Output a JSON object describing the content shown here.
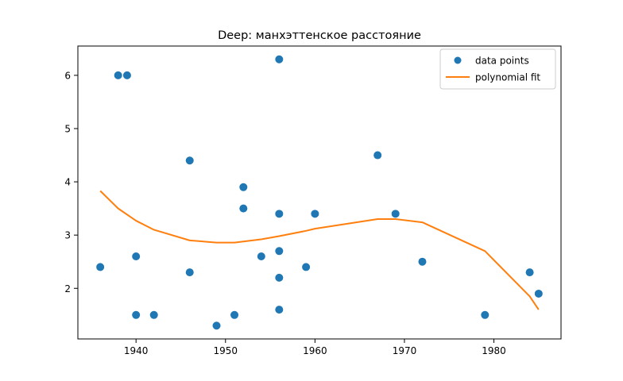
{
  "chart_data": {
    "type": "scatter",
    "title": "Deep: манхэттенское расстояние",
    "xlabel": "",
    "ylabel": "",
    "xlim": [
      1933.5,
      1987.5
    ],
    "ylim": [
      1.05,
      6.55
    ],
    "xticks": [
      1940,
      1950,
      1960,
      1970,
      1980
    ],
    "yticks": [
      2,
      3,
      4,
      5,
      6
    ],
    "grid": false,
    "legend_position": "top-right",
    "colors": {
      "points": "#1f77b4",
      "fit": "#ff7f0e",
      "axes": "#000000"
    },
    "series": [
      {
        "name": "data points",
        "kind": "scatter",
        "points": [
          [
            1936,
            2.4
          ],
          [
            1938,
            6.0
          ],
          [
            1939,
            6.0
          ],
          [
            1940,
            2.6
          ],
          [
            1940,
            1.5
          ],
          [
            1942,
            1.5
          ],
          [
            1946,
            4.4
          ],
          [
            1946,
            2.3
          ],
          [
            1949,
            1.3
          ],
          [
            1951,
            1.5
          ],
          [
            1952,
            3.9
          ],
          [
            1952,
            3.5
          ],
          [
            1954,
            2.6
          ],
          [
            1956,
            6.3
          ],
          [
            1956,
            3.4
          ],
          [
            1956,
            2.7
          ],
          [
            1956,
            2.2
          ],
          [
            1956,
            1.6
          ],
          [
            1959,
            2.4
          ],
          [
            1960,
            3.4
          ],
          [
            1967,
            4.5
          ],
          [
            1969,
            3.4
          ],
          [
            1972,
            2.5
          ],
          [
            1979,
            1.5
          ],
          [
            1984,
            2.3
          ],
          [
            1985,
            1.9
          ]
        ]
      },
      {
        "name": "polynomial fit",
        "kind": "line",
        "points": [
          [
            1936,
            3.83
          ],
          [
            1938,
            3.5
          ],
          [
            1940,
            3.27
          ],
          [
            1942,
            3.1
          ],
          [
            1946,
            2.9
          ],
          [
            1949,
            2.86
          ],
          [
            1951,
            2.86
          ],
          [
            1952,
            2.88
          ],
          [
            1954,
            2.92
          ],
          [
            1956,
            2.98
          ],
          [
            1959,
            3.08
          ],
          [
            1960,
            3.12
          ],
          [
            1967,
            3.3
          ],
          [
            1969,
            3.3
          ],
          [
            1972,
            3.24
          ],
          [
            1979,
            2.7
          ],
          [
            1984,
            1.85
          ],
          [
            1985,
            1.6
          ]
        ]
      }
    ]
  }
}
